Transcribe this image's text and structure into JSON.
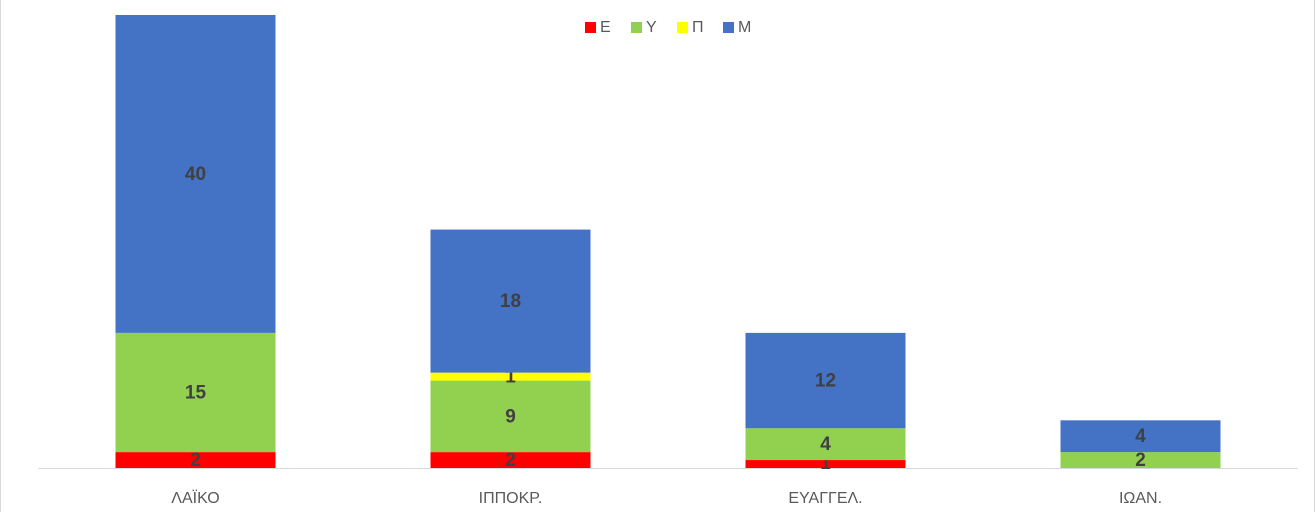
{
  "chart_data": {
    "type": "bar",
    "stacked": true,
    "categories": [
      "ΛΑΪΚΟ",
      "ΙΠΠΟΚΡ.",
      "ΕΥΑΓΓΕΛ.",
      "ΙΩΑΝ."
    ],
    "series": [
      {
        "name": "Ε",
        "color": "#ff0000",
        "values": [
          2,
          2,
          1,
          0
        ]
      },
      {
        "name": "Υ",
        "color": "#92d050",
        "values": [
          15,
          9,
          4,
          2
        ]
      },
      {
        "name": "Π",
        "color": "#ffff00",
        "values": [
          0,
          1,
          0,
          0
        ]
      },
      {
        "name": "Μ",
        "color": "#4472c4",
        "values": [
          40,
          18,
          12,
          4
        ]
      }
    ],
    "legend": "top"
  }
}
